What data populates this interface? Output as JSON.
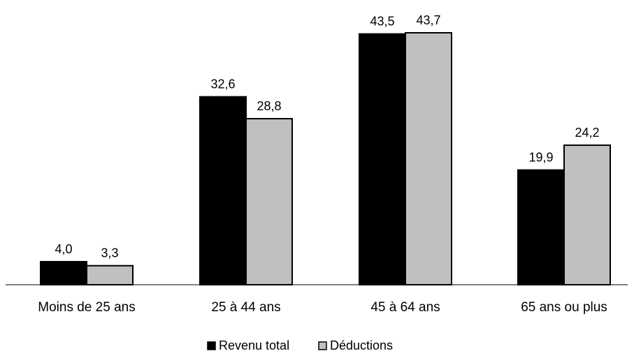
{
  "chart_data": {
    "type": "bar",
    "categories": [
      "Moins de 25 ans",
      "25 à 44 ans",
      "45 à 64 ans",
      "65 ans ou plus"
    ],
    "series": [
      {
        "name": "Revenu total",
        "values": [
          4.0,
          32.6,
          43.5,
          19.9
        ],
        "labels": [
          "4,0",
          "32,6",
          "43,5",
          "19,9"
        ],
        "color": "#000000"
      },
      {
        "name": "Déductions",
        "values": [
          3.3,
          28.8,
          43.7,
          24.2
        ],
        "labels": [
          "3,3",
          "28,8",
          "43,7",
          "24,2"
        ],
        "color": "#c0c0c0"
      }
    ],
    "ylim": [
      0,
      43.7
    ],
    "title": "",
    "xlabel": "",
    "ylabel": "",
    "grid": false,
    "legend_position": "bottom"
  }
}
